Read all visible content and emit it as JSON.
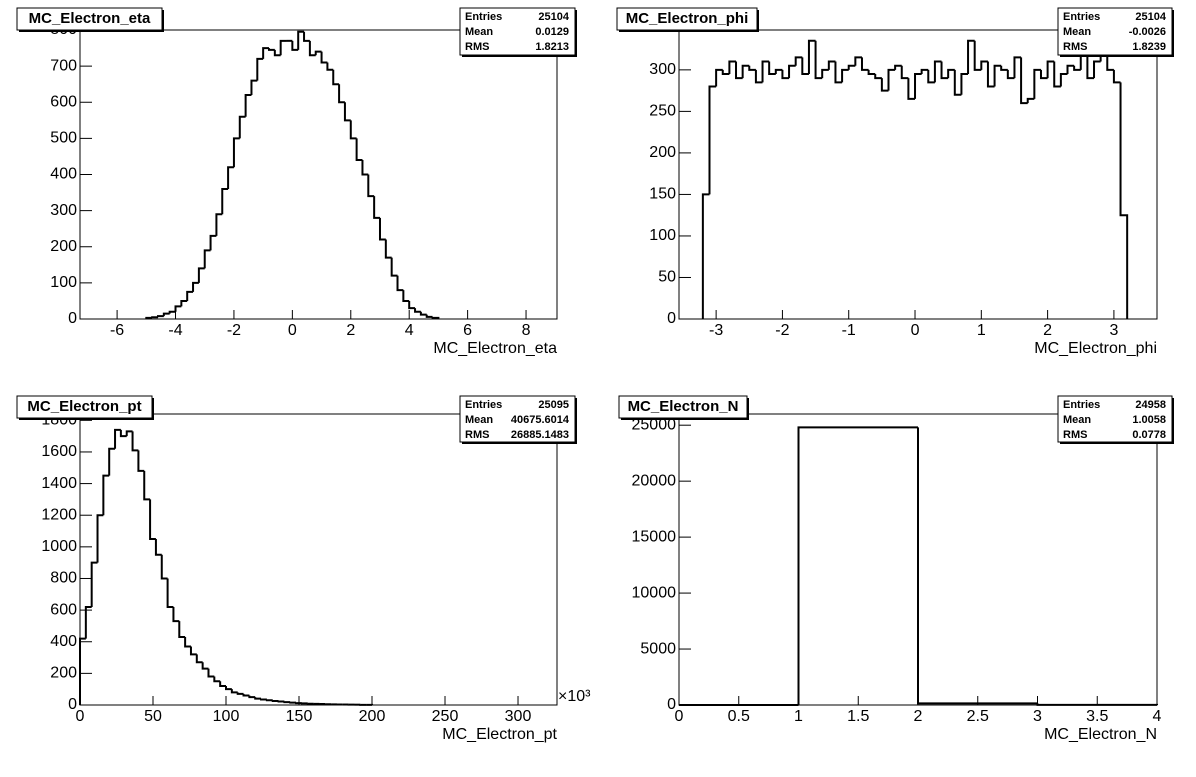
{
  "chart_data": [
    {
      "type": "histogram",
      "title": "MC_Electron_eta",
      "x_label": "MC_Electron_eta",
      "color": "#000000",
      "stats": [
        {
          "label": "Entries",
          "value": 25104
        },
        {
          "label": "Mean",
          "value": 0.0129
        },
        {
          "label": "RMS",
          "value": 1.8213
        }
      ],
      "bins": [
        -5,
        -4.8,
        -4.6,
        -4.4,
        -4.2,
        -4,
        -3.8,
        -3.6,
        -3.4,
        -3.2,
        -3,
        -2.8,
        -2.6,
        -2.4,
        -2.2,
        -2,
        -1.8,
        -1.6,
        -1.4,
        -1.2,
        -1,
        -0.8,
        -0.6,
        -0.4,
        -0.2,
        0,
        0.2,
        0.4,
        0.6,
        0.8,
        1,
        1.2,
        1.4,
        1.6,
        1.8,
        2,
        2.2,
        2.4,
        2.6,
        2.8,
        3,
        3.2,
        3.4,
        3.6,
        3.8,
        4,
        4.2,
        4.4,
        4.6,
        4.8,
        5
      ],
      "values": [
        3,
        5,
        8,
        15,
        20,
        35,
        50,
        75,
        100,
        140,
        190,
        230,
        290,
        360,
        420,
        500,
        560,
        620,
        660,
        720,
        750,
        745,
        730,
        770,
        770,
        745,
        795,
        770,
        730,
        740,
        710,
        690,
        650,
        600,
        550,
        500,
        440,
        400,
        340,
        280,
        220,
        170,
        120,
        80,
        50,
        30,
        20,
        12,
        6,
        3
      ],
      "xlim": [
        -7.27,
        9.06
      ],
      "ylim": [
        0,
        800
      ],
      "xticks": [
        -6,
        -4,
        -2,
        0,
        2,
        4,
        6,
        8
      ],
      "yticks": [
        0,
        100,
        200,
        300,
        400,
        500,
        600,
        700,
        800
      ]
    },
    {
      "type": "histogram",
      "title": "MC_Electron_phi",
      "x_label": "MC_Electron_phi",
      "color": "#000000",
      "stats": [
        {
          "label": "Entries",
          "value": 25104
        },
        {
          "label": "Mean",
          "value": -0.0026
        },
        {
          "label": "RMS",
          "value": 1.8239
        }
      ],
      "bins": [
        -3.2,
        -3.1,
        -3,
        -2.9,
        -2.8,
        -2.7,
        -2.6,
        -2.5,
        -2.4,
        -2.3,
        -2.2,
        -2.1,
        -2,
        -1.9,
        -1.8,
        -1.7,
        -1.6,
        -1.5,
        -1.4,
        -1.3,
        -1.2,
        -1.1,
        -1,
        -0.9,
        -0.8,
        -0.7,
        -0.6,
        -0.5,
        -0.4,
        -0.3,
        -0.2,
        -0.1,
        0,
        0.1,
        0.2,
        0.3,
        0.4,
        0.5,
        0.6,
        0.7,
        0.8,
        0.9,
        1,
        1.1,
        1.2,
        1.3,
        1.4,
        1.5,
        1.6,
        1.7,
        1.8,
        1.9,
        2,
        2.1,
        2.2,
        2.3,
        2.4,
        2.5,
        2.6,
        2.7,
        2.8,
        2.9,
        3,
        3.1,
        3.2
      ],
      "values": [
        150,
        280,
        300,
        295,
        310,
        290,
        305,
        300,
        285,
        310,
        295,
        300,
        290,
        305,
        315,
        295,
        335,
        290,
        300,
        310,
        285,
        300,
        305,
        315,
        300,
        295,
        290,
        275,
        300,
        305,
        290,
        265,
        295,
        300,
        285,
        310,
        290,
        300,
        270,
        295,
        335,
        300,
        310,
        280,
        305,
        300,
        290,
        315,
        260,
        265,
        300,
        290,
        310,
        280,
        295,
        305,
        300,
        320,
        290,
        310,
        325,
        300,
        285,
        125
      ],
      "xlim": [
        -3.56,
        3.65
      ],
      "ylim": [
        0,
        348
      ],
      "xticks": [
        -3,
        -2,
        -1,
        0,
        1,
        2,
        3
      ],
      "yticks": [
        0,
        50,
        100,
        150,
        200,
        250,
        300
      ]
    },
    {
      "type": "histogram",
      "title": "MC_Electron_pt",
      "x_label": "MC_Electron_pt",
      "x_exponent": "×10³",
      "color": "#000000",
      "stats": [
        {
          "label": "Entries",
          "value": 25095
        },
        {
          "label": "Mean",
          "value": 40675.6014
        },
        {
          "label": "RMS",
          "value": 26885.1483
        }
      ],
      "bins": [
        0,
        4,
        8,
        12,
        16,
        20,
        24,
        28,
        32,
        36,
        40,
        44,
        48,
        52,
        56,
        60,
        64,
        68,
        72,
        76,
        80,
        84,
        88,
        92,
        96,
        100,
        104,
        108,
        112,
        116,
        120,
        124,
        128,
        132,
        136,
        140,
        144,
        148,
        152,
        156,
        160,
        164,
        168,
        172,
        176,
        180,
        184,
        188,
        192,
        196,
        200
      ],
      "values": [
        420,
        620,
        900,
        1200,
        1450,
        1620,
        1740,
        1700,
        1730,
        1610,
        1480,
        1300,
        1050,
        950,
        800,
        620,
        530,
        430,
        370,
        320,
        270,
        230,
        180,
        150,
        120,
        100,
        80,
        70,
        60,
        50,
        40,
        35,
        30,
        25,
        22,
        18,
        15,
        12,
        10,
        8,
        7,
        6,
        5,
        4,
        3,
        3,
        2,
        2,
        1,
        1
      ],
      "xlim": [
        0,
        326.7
      ],
      "ylim": [
        0,
        1840
      ],
      "xticks": [
        0,
        50,
        100,
        150,
        200,
        250,
        300
      ],
      "yticks": [
        0,
        200,
        400,
        600,
        800,
        1000,
        1200,
        1400,
        1600,
        1800
      ]
    },
    {
      "type": "histogram",
      "title": "MC_Electron_N",
      "x_label": "MC_Electron_N",
      "color": "#000000",
      "stats": [
        {
          "label": "Entries",
          "value": 24958
        },
        {
          "label": "Mean",
          "value": 1.0058
        },
        {
          "label": "RMS",
          "value": 0.0778
        }
      ],
      "bins": [
        0,
        1,
        2,
        3,
        4
      ],
      "values": [
        0,
        24810,
        140,
        8
      ],
      "xlim": [
        0,
        4
      ],
      "ylim": [
        0,
        26000
      ],
      "xticks": [
        0,
        0.5,
        1,
        1.5,
        2,
        2.5,
        3,
        3.5,
        4
      ],
      "yticks": [
        0,
        5000,
        10000,
        15000,
        20000,
        25000
      ]
    }
  ]
}
